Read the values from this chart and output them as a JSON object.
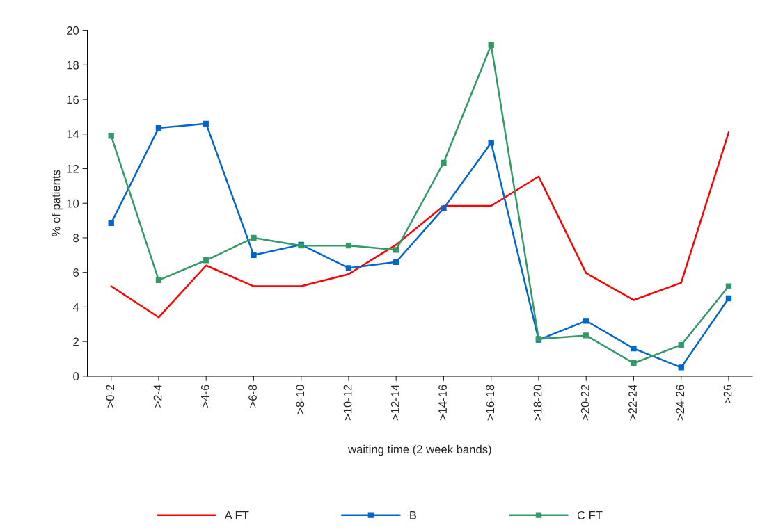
{
  "chart_data": {
    "type": "line",
    "xlabel": "waiting time (2 week bands)",
    "ylabel": "% of patients",
    "categories": [
      ">0-2",
      ">2-4",
      ">4-6",
      ">6-8",
      ">8-10",
      ">10-12",
      ">12-14",
      ">14-16",
      ">16-18",
      ">18-20",
      ">20-22",
      ">22-24",
      ">24-26",
      ">26"
    ],
    "series": [
      {
        "name": "A FT",
        "color": "#ff0000",
        "marker": "none",
        "values": [
          5.2,
          3.4,
          6.4,
          5.2,
          5.2,
          5.9,
          7.6,
          9.85,
          9.85,
          11.55,
          5.95,
          4.4,
          5.4,
          14.1
        ]
      },
      {
        "name": "B",
        "color": "#0066cc",
        "marker": "square",
        "values": [
          8.85,
          14.35,
          14.6,
          7.0,
          7.6,
          6.25,
          6.6,
          9.7,
          13.5,
          2.1,
          3.2,
          1.6,
          0.5,
          4.5
        ]
      },
      {
        "name": "C FT",
        "color": "#339966",
        "marker": "square",
        "values": [
          13.9,
          5.55,
          6.7,
          8.0,
          7.55,
          7.55,
          7.3,
          12.35,
          19.15,
          2.15,
          2.35,
          0.75,
          1.8,
          5.2
        ]
      }
    ],
    "ylim": [
      0,
      20
    ],
    "yticks": [
      0,
      2,
      4,
      6,
      8,
      10,
      12,
      14,
      16,
      18,
      20
    ],
    "grid": false,
    "legend": "bottom",
    "line_style": "solid"
  }
}
